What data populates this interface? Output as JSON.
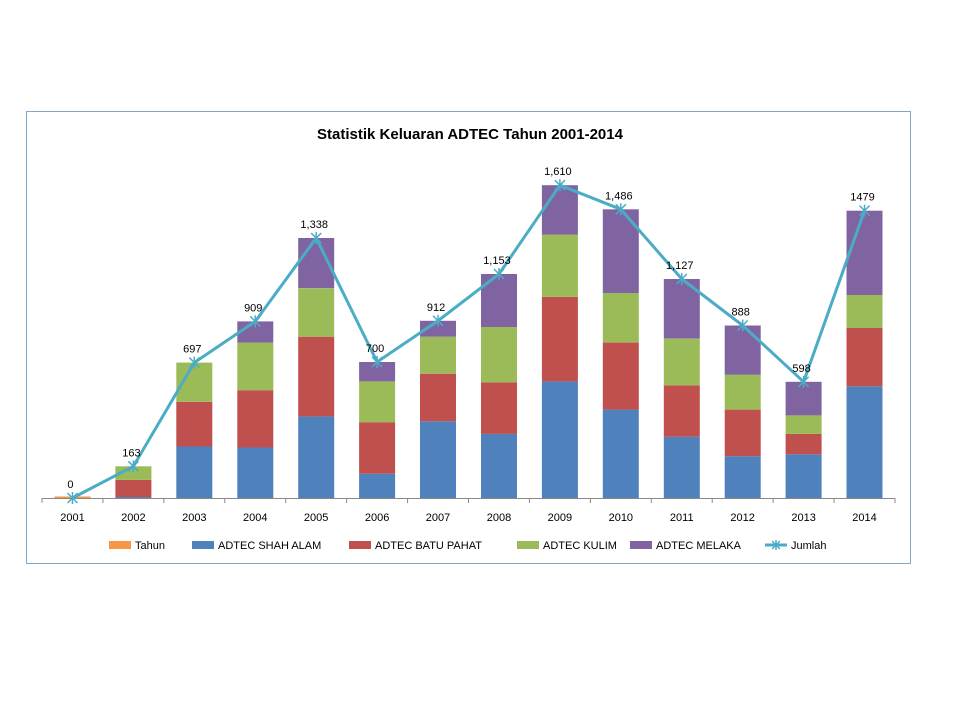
{
  "chart_data": {
    "type": "bar",
    "title": "Statistik Keluaran ADTEC Tahun 2001-2014",
    "stacked": true,
    "categories": [
      "2001",
      "2002",
      "2003",
      "2004",
      "2005",
      "2006",
      "2007",
      "2008",
      "2009",
      "2010",
      "2011",
      "2012",
      "2013",
      "2014"
    ],
    "series": [
      {
        "name": "Tahun",
        "type": "bar",
        "color": "#f79646",
        "values": [
          0,
          0,
          0,
          0,
          0,
          0,
          0,
          0,
          0,
          0,
          0,
          0,
          0,
          0
        ]
      },
      {
        "name": "ADTEC SHAH ALAM",
        "type": "bar",
        "color": "#4f81bd",
        "values": [
          0,
          5,
          265,
          260,
          420,
          125,
          395,
          330,
          600,
          455,
          315,
          215,
          225,
          575
        ]
      },
      {
        "name": "ADTEC BATU PAHAT",
        "type": "bar",
        "color": "#c0504d",
        "values": [
          0,
          88,
          230,
          295,
          410,
          265,
          245,
          265,
          435,
          345,
          265,
          240,
          105,
          300
        ]
      },
      {
        "name": "ADTEC KULIM",
        "type": "bar",
        "color": "#9bbb59",
        "values": [
          0,
          70,
          202,
          245,
          250,
          210,
          190,
          285,
          320,
          255,
          240,
          180,
          95,
          170
        ]
      },
      {
        "name": "ADTEC MELAKA",
        "type": "bar",
        "color": "#8064a2",
        "values": [
          0,
          0,
          0,
          109,
          258,
          100,
          82,
          273,
          255,
          431,
          307,
          253,
          173,
          434
        ]
      },
      {
        "name": "Jumlah",
        "type": "line",
        "color": "#4bacc6",
        "values": [
          0,
          163,
          697,
          909,
          1338,
          700,
          912,
          1153,
          1610,
          1486,
          1127,
          888,
          598,
          1479
        ]
      }
    ],
    "data_labels": [
      "0",
      "163",
      "697",
      "909",
      "1,338",
      "700",
      "912",
      "1,153",
      "1,610",
      "1,486",
      "1,127",
      "888",
      "598",
      "1479"
    ],
    "ylim": [
      0,
      1750
    ],
    "grid": false,
    "legend": "bottom"
  }
}
